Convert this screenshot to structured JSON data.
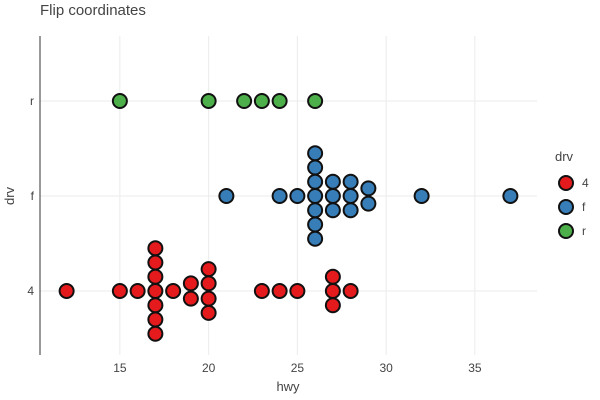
{
  "chart_data": {
    "type": "scatter",
    "title": "Flip coordinates",
    "xlabel": "hwy",
    "ylabel": "drv",
    "xlim": [
      10.5,
      38.5
    ],
    "x_ticks": [
      15,
      20,
      25,
      30,
      35
    ],
    "categories": [
      "4",
      "f",
      "r"
    ],
    "grid": true,
    "legend": {
      "title": "drv",
      "placement": "right",
      "entries": [
        "4",
        "f",
        "r"
      ]
    },
    "series": [
      {
        "name": "4",
        "color": "#e41a1c",
        "points": [
          [
            12,
            0.0
          ],
          [
            15,
            0.0
          ],
          [
            16,
            0.0
          ],
          [
            17,
            0.45
          ],
          [
            17,
            0.3
          ],
          [
            17,
            0.15
          ],
          [
            17,
            0.0
          ],
          [
            17,
            -0.15
          ],
          [
            17,
            -0.3
          ],
          [
            17,
            -0.45
          ],
          [
            18,
            0.0
          ],
          [
            19,
            0.08
          ],
          [
            19,
            -0.08
          ],
          [
            20,
            0.23
          ],
          [
            20,
            0.08
          ],
          [
            20,
            -0.08
          ],
          [
            20,
            -0.23
          ],
          [
            23,
            0.0
          ],
          [
            24,
            0.0
          ],
          [
            25,
            0.0
          ],
          [
            27,
            0.15
          ],
          [
            27,
            0.0
          ],
          [
            27,
            -0.15
          ],
          [
            28,
            0.0
          ]
        ]
      },
      {
        "name": "f",
        "color": "#377eb8",
        "points": [
          [
            21,
            0.0
          ],
          [
            24,
            0.0
          ],
          [
            25,
            0.0
          ],
          [
            26,
            0.45
          ],
          [
            26,
            0.3
          ],
          [
            26,
            0.15
          ],
          [
            26,
            0.0
          ],
          [
            26,
            -0.15
          ],
          [
            26,
            -0.3
          ],
          [
            26,
            -0.45
          ],
          [
            27,
            0.15
          ],
          [
            27,
            0.0
          ],
          [
            27,
            -0.15
          ],
          [
            28,
            0.15
          ],
          [
            28,
            0.0
          ],
          [
            28,
            -0.15
          ],
          [
            29,
            0.08
          ],
          [
            29,
            -0.08
          ],
          [
            32,
            0.0
          ],
          [
            37,
            0.0
          ]
        ]
      },
      {
        "name": "r",
        "color": "#4daf4a",
        "points": [
          [
            15,
            0.0
          ],
          [
            20,
            0.0
          ],
          [
            22,
            0.0
          ],
          [
            23,
            0.0
          ],
          [
            24,
            0.0
          ],
          [
            26,
            0.0
          ]
        ]
      }
    ]
  }
}
